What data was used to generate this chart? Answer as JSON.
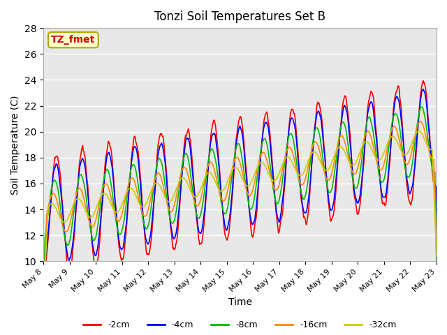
{
  "title": "Tonzi Soil Temperatures Set B",
  "xlabel": "Time",
  "ylabel": "Soil Temperature (C)",
  "ylim": [
    10,
    28
  ],
  "yticks": [
    10,
    12,
    14,
    16,
    18,
    20,
    22,
    24,
    26,
    28
  ],
  "xtick_labels": [
    "May 8",
    "May 9",
    "May 10",
    "May 11",
    "May 12",
    "May 13",
    "May 14",
    "May 15",
    "May 16",
    "May 17",
    "May 18",
    "May 19",
    "May 20",
    "May 21",
    "May 22",
    "May 23"
  ],
  "colors": {
    "-2cm": "#ff0000",
    "-4cm": "#0000ff",
    "-8cm": "#00bb00",
    "-16cm": "#ff8800",
    "-32cm": "#cccc00"
  },
  "annotation_text": "TZ_fmet",
  "annotation_color": "#cc0000",
  "annotation_bg": "#ffffcc",
  "annotation_border": "#aaaa00",
  "background_color": "#e8e8e8",
  "grid_color": "#ffffff",
  "n_days": 15,
  "points_per_day": 48
}
